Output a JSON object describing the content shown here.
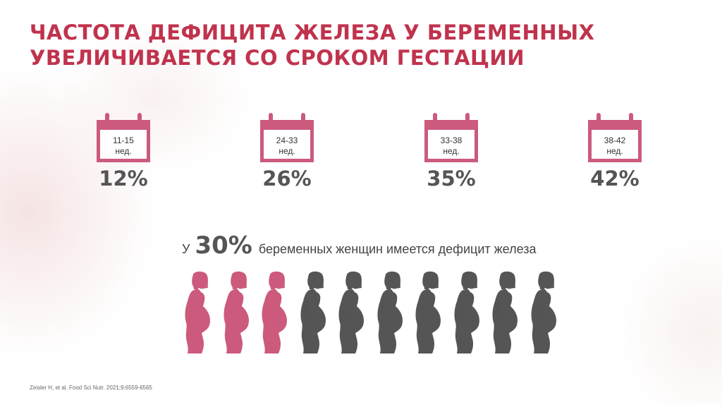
{
  "title": {
    "line1": "ЧАСТОТА ДЕФИЦИТА ЖЕЛЕЗА У БЕРЕМЕННЫХ",
    "line2": "УВЕЛИЧИВАЕТСЯ СО СРОКОМ ГЕСТАЦИИ"
  },
  "periods": [
    {
      "weeks": "11-15",
      "unit": "нед.",
      "percent": "12%"
    },
    {
      "weeks": "24-33",
      "unit": "нед.",
      "percent": "26%"
    },
    {
      "weeks": "33-38",
      "unit": "нед.",
      "percent": "35%"
    },
    {
      "weeks": "38-42",
      "unit": "нед.",
      "percent": "42%"
    }
  ],
  "statistic": {
    "prefix": "У",
    "value": "30%",
    "text": "беременных женщин имеется дефицит железа",
    "highlighted_count": 3,
    "total_count": 10
  },
  "icons": {
    "calendar": "calendar-icon",
    "figure": "pregnant-woman-icon"
  },
  "colors": {
    "title": "#c0334d",
    "accent_pink": "#cc5a7c",
    "figure_gray": "#555555",
    "percent_gray": "#555555"
  },
  "citation": "Zeisler H, et al. Food Sci Nutr. 2021;9:6559-6565"
}
